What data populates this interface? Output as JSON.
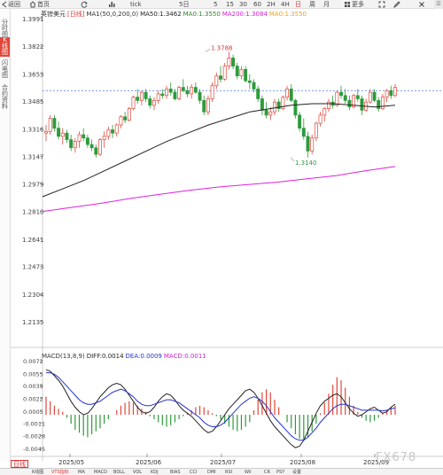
{
  "toolbar": {
    "back": "返回",
    "home": "首页",
    "symbol": "英镑美元",
    "tick": "tick",
    "p5day": "5日",
    "p5": "5",
    "p15": "15",
    "p30": "30",
    "p60": "60",
    "h2": "2H",
    "h4": "4H",
    "day": "日",
    "week": "周",
    "month": "月",
    "more": "更多"
  },
  "sidebar": [
    {
      "label": "分时图",
      "active": false
    },
    {
      "label": "K线图",
      "active": true
    },
    {
      "label": "闪电图",
      "active": false
    },
    {
      "label": "合约资料",
      "active": false
    }
  ],
  "legend_main": {
    "name": "英镑美元",
    "period": "日线",
    "ma1": "MA1(50,0,200,0)",
    "ma50": "MA50:1.3462",
    "ma0": "MA0:1.3550",
    "ma200": "MA200:1.3084",
    "ma0b": "MA0:1.3550"
  },
  "legend_macd": {
    "macd": "MACD(13,8,9)",
    "diff": "DIFF:0.0014",
    "dea": "DEA:0.0009",
    "macdv": "MACD:0.0011"
  },
  "price_axis": [
    "1.3991",
    "1.3822",
    "1.3653",
    "1.3485",
    "1.3316",
    "1.3147",
    "1.2979",
    "1.2810",
    "1.2641",
    "1.2473",
    "1.2304",
    "1.2135"
  ],
  "macd_axis": [
    "0.0072",
    "0.0055",
    "0.0039",
    "0.0022",
    "0.0005",
    "-0.0011",
    "-0.0028",
    "-0.0045"
  ],
  "date_axis": [
    "2025/05",
    "2025/06",
    "2025/07",
    "2025/08",
    "2025/09"
  ],
  "annotations": {
    "high": "1.3788",
    "low": "1.3140"
  },
  "period_tab": "日线",
  "bottom_tabs": [
    "K线图",
    "VTS指标",
    "MA",
    "MACD",
    "BOLL",
    "VOL",
    "KDJ",
    "BIAS",
    "CCI",
    "DMI",
    "RSI",
    "Wil",
    "CR",
    "PSY",
    "设置"
  ],
  "watermark": "FX678",
  "colors": {
    "up": "#e0473a",
    "down": "#2e9a3c",
    "ma50": "#222222",
    "ma200": "#e020e0",
    "diff": "#222222",
    "dea": "#2233cc",
    "lastprice": "#4a7bd6"
  },
  "chart_data": {
    "type": "candlestick",
    "ylim": [
      1.2135,
      1.3991
    ],
    "last_price": 1.355,
    "high_marker": 1.3788,
    "low_marker": 1.314,
    "ma50": [
      1.29,
      1.295,
      1.3,
      1.306,
      1.312,
      1.318,
      1.324,
      1.329,
      1.334,
      1.338,
      1.342,
      1.344,
      1.346,
      1.347,
      1.347,
      1.346,
      1.345,
      1.346
    ],
    "ma200": [
      1.281,
      1.2835,
      1.286,
      1.289,
      1.2915,
      1.294,
      1.296,
      1.2975,
      1.299,
      1.301,
      1.303,
      1.306,
      1.3085
    ],
    "ohlc": [
      [
        1.329,
        1.334,
        1.324,
        1.33
      ],
      [
        1.33,
        1.34,
        1.328,
        1.338
      ],
      [
        1.338,
        1.34,
        1.33,
        1.332
      ],
      [
        1.332,
        1.336,
        1.325,
        1.327
      ],
      [
        1.327,
        1.332,
        1.322,
        1.329
      ],
      [
        1.329,
        1.331,
        1.323,
        1.325
      ],
      [
        1.325,
        1.328,
        1.318,
        1.32
      ],
      [
        1.32,
        1.326,
        1.317,
        1.324
      ],
      [
        1.324,
        1.33,
        1.32,
        1.328
      ],
      [
        1.328,
        1.332,
        1.324,
        1.326
      ],
      [
        1.326,
        1.328,
        1.32,
        1.322
      ],
      [
        1.322,
        1.325,
        1.318,
        1.32
      ],
      [
        1.32,
        1.322,
        1.314,
        1.316
      ],
      [
        1.316,
        1.326,
        1.315,
        1.325
      ],
      [
        1.325,
        1.33,
        1.32,
        1.327
      ],
      [
        1.327,
        1.333,
        1.325,
        1.331
      ],
      [
        1.331,
        1.334,
        1.326,
        1.329
      ],
      [
        1.329,
        1.335,
        1.327,
        1.334
      ],
      [
        1.334,
        1.34,
        1.332,
        1.339
      ],
      [
        1.339,
        1.342,
        1.335,
        1.337
      ],
      [
        1.337,
        1.345,
        1.336,
        1.344
      ],
      [
        1.344,
        1.352,
        1.343,
        1.351
      ],
      [
        1.351,
        1.356,
        1.347,
        1.349
      ],
      [
        1.349,
        1.355,
        1.346,
        1.354
      ],
      [
        1.354,
        1.356,
        1.348,
        1.35
      ],
      [
        1.35,
        1.352,
        1.344,
        1.346
      ],
      [
        1.346,
        1.351,
        1.343,
        1.349
      ],
      [
        1.349,
        1.355,
        1.347,
        1.353
      ],
      [
        1.353,
        1.356,
        1.35,
        1.352
      ],
      [
        1.352,
        1.358,
        1.35,
        1.356
      ],
      [
        1.356,
        1.36,
        1.352,
        1.354
      ],
      [
        1.354,
        1.356,
        1.349,
        1.35
      ],
      [
        1.35,
        1.358,
        1.349,
        1.357
      ],
      [
        1.357,
        1.362,
        1.354,
        1.355
      ],
      [
        1.355,
        1.358,
        1.351,
        1.353
      ],
      [
        1.353,
        1.359,
        1.35,
        1.357
      ],
      [
        1.357,
        1.36,
        1.353,
        1.354
      ],
      [
        1.354,
        1.356,
        1.347,
        1.349
      ],
      [
        1.349,
        1.352,
        1.34,
        1.342
      ],
      [
        1.342,
        1.352,
        1.34,
        1.35
      ],
      [
        1.35,
        1.36,
        1.348,
        1.358
      ],
      [
        1.358,
        1.366,
        1.356,
        1.364
      ],
      [
        1.364,
        1.37,
        1.36,
        1.362
      ],
      [
        1.362,
        1.372,
        1.361,
        1.37
      ],
      [
        1.37,
        1.3788,
        1.368,
        1.375
      ],
      [
        1.375,
        1.377,
        1.368,
        1.37
      ],
      [
        1.37,
        1.372,
        1.362,
        1.364
      ],
      [
        1.364,
        1.37,
        1.362,
        1.368
      ],
      [
        1.368,
        1.37,
        1.36,
        1.361
      ],
      [
        1.361,
        1.365,
        1.356,
        1.36
      ],
      [
        1.36,
        1.362,
        1.354,
        1.356
      ],
      [
        1.356,
        1.358,
        1.348,
        1.35
      ],
      [
        1.35,
        1.352,
        1.34,
        1.343
      ],
      [
        1.343,
        1.348,
        1.338,
        1.34
      ],
      [
        1.34,
        1.345,
        1.337,
        1.342
      ],
      [
        1.342,
        1.35,
        1.34,
        1.348
      ],
      [
        1.348,
        1.35,
        1.342,
        1.344
      ],
      [
        1.344,
        1.352,
        1.343,
        1.351
      ],
      [
        1.351,
        1.358,
        1.349,
        1.356
      ],
      [
        1.356,
        1.359,
        1.348,
        1.349
      ],
      [
        1.349,
        1.35,
        1.338,
        1.34
      ],
      [
        1.34,
        1.342,
        1.33,
        1.332
      ],
      [
        1.332,
        1.338,
        1.325,
        1.327
      ],
      [
        1.327,
        1.33,
        1.314,
        1.318
      ],
      [
        1.318,
        1.328,
        1.316,
        1.326
      ],
      [
        1.326,
        1.336,
        1.324,
        1.335
      ],
      [
        1.335,
        1.342,
        1.333,
        1.34
      ],
      [
        1.34,
        1.345,
        1.336,
        1.344
      ],
      [
        1.344,
        1.35,
        1.342,
        1.348
      ],
      [
        1.348,
        1.352,
        1.344,
        1.346
      ],
      [
        1.346,
        1.355,
        1.345,
        1.354
      ],
      [
        1.354,
        1.358,
        1.35,
        1.352
      ],
      [
        1.352,
        1.356,
        1.347,
        1.349
      ],
      [
        1.349,
        1.352,
        1.343,
        1.345
      ],
      [
        1.345,
        1.353,
        1.344,
        1.352
      ],
      [
        1.352,
        1.356,
        1.348,
        1.35
      ],
      [
        1.35,
        1.352,
        1.34,
        1.343
      ],
      [
        1.343,
        1.35,
        1.342,
        1.348
      ],
      [
        1.348,
        1.356,
        1.347,
        1.354
      ],
      [
        1.354,
        1.356,
        1.348,
        1.349
      ],
      [
        1.349,
        1.351,
        1.342,
        1.344
      ],
      [
        1.344,
        1.353,
        1.343,
        1.351
      ],
      [
        1.351,
        1.356,
        1.348,
        1.355
      ],
      [
        1.355,
        1.358,
        1.35,
        1.352
      ],
      [
        1.352,
        1.359,
        1.351,
        1.357
      ]
    ],
    "macd": {
      "hist": [
        0.0024,
        0.0018,
        0.0012,
        0.0008,
        0.0004,
        -0.0004,
        -0.0012,
        -0.002,
        -0.0024,
        -0.0028,
        -0.003,
        -0.0026,
        -0.0022,
        -0.0018,
        -0.0012,
        -0.0006,
        0.0,
        0.0006,
        0.0012,
        0.0016,
        0.0018,
        0.0016,
        0.0012,
        0.0008,
        0.0004,
        -0.0002,
        -0.0006,
        -0.001,
        -0.0014,
        -0.0016,
        -0.0014,
        -0.001,
        -0.0006,
        -0.0002,
        0.0002,
        0.0006,
        0.001,
        0.0012,
        0.001,
        0.0006,
        0.0002,
        -0.0002,
        -0.0006,
        -0.0012,
        -0.0016,
        -0.002,
        -0.0022,
        -0.002,
        -0.0016,
        -0.001,
        0.0006,
        0.002,
        0.003,
        0.0034,
        0.003,
        0.002,
        0.001,
        0.0,
        -0.001,
        -0.0018,
        -0.0026,
        -0.0032,
        -0.0034,
        -0.003,
        -0.0022,
        -0.0012,
        0.0002,
        0.0016,
        0.0028,
        0.004,
        0.005,
        0.0046,
        0.0036,
        0.0024,
        0.0012,
        0.0004,
        -0.0004,
        -0.0008,
        -0.001,
        -0.0008,
        -0.0004,
        0.0002,
        0.0006,
        0.001,
        0.0012
      ],
      "diff": [
        0.006,
        0.0058,
        0.0052,
        0.0046,
        0.0038,
        0.0028,
        0.0018,
        0.001,
        0.0004,
        0.0,
        0.0002,
        0.0008,
        0.0016,
        0.0024,
        0.003,
        0.0036,
        0.004,
        0.0042,
        0.004,
        0.0034,
        0.0026,
        0.0018,
        0.001,
        0.0004,
        0.0002,
        0.0004,
        0.001,
        0.0018,
        0.0024,
        0.0028,
        0.0026,
        0.002,
        0.0012,
        0.0006,
        0.0002,
        -0.0002,
        -0.0008,
        -0.0014,
        -0.002,
        -0.0024,
        -0.0022,
        -0.0016,
        -0.0008,
        0.0,
        0.0008,
        0.0014,
        0.002,
        0.0026,
        0.0032,
        0.0034,
        0.003,
        0.0022,
        0.0012,
        0.0002,
        -0.0008,
        -0.0016,
        -0.0022,
        -0.0028,
        -0.0034,
        -0.004,
        -0.0044,
        -0.0042,
        -0.0034,
        -0.0022,
        -0.001,
        0.0002,
        0.0012,
        0.0018,
        0.0022,
        0.0026,
        0.0028,
        0.0024,
        0.0016,
        0.0008,
        0.0002,
        -0.0002,
        0.0,
        0.0004,
        0.0008,
        0.001,
        0.0006,
        0.0002,
        0.0004,
        0.001,
        0.0014
      ],
      "dea": [
        0.0056,
        0.0056,
        0.0054,
        0.005,
        0.0044,
        0.0038,
        0.0032,
        0.0026,
        0.002,
        0.0016,
        0.0014,
        0.0014,
        0.0016,
        0.0018,
        0.0022,
        0.0026,
        0.003,
        0.0032,
        0.0034,
        0.0032,
        0.0028,
        0.0024,
        0.0018,
        0.0014,
        0.0012,
        0.0012,
        0.0014,
        0.0016,
        0.0018,
        0.002,
        0.002,
        0.0018,
        0.0016,
        0.0012,
        0.0008,
        0.0004,
        0.0,
        -0.0004,
        -0.001,
        -0.0014,
        -0.0016,
        -0.0016,
        -0.0014,
        -0.001,
        -0.0004,
        0.0002,
        0.0008,
        0.0014,
        0.0018,
        0.0022,
        0.0024,
        0.0022,
        0.0018,
        0.0012,
        0.0004,
        -0.0004,
        -0.001,
        -0.0016,
        -0.0022,
        -0.0028,
        -0.0032,
        -0.0034,
        -0.0034,
        -0.003,
        -0.0024,
        -0.0018,
        -0.001,
        -0.0004,
        0.0002,
        0.0008,
        0.0012,
        0.0014,
        0.0014,
        0.0012,
        0.001,
        0.0008,
        0.0006,
        0.0006,
        0.0006,
        0.0006,
        0.0006,
        0.0005,
        0.0006,
        0.0008,
        0.0009
      ]
    }
  }
}
